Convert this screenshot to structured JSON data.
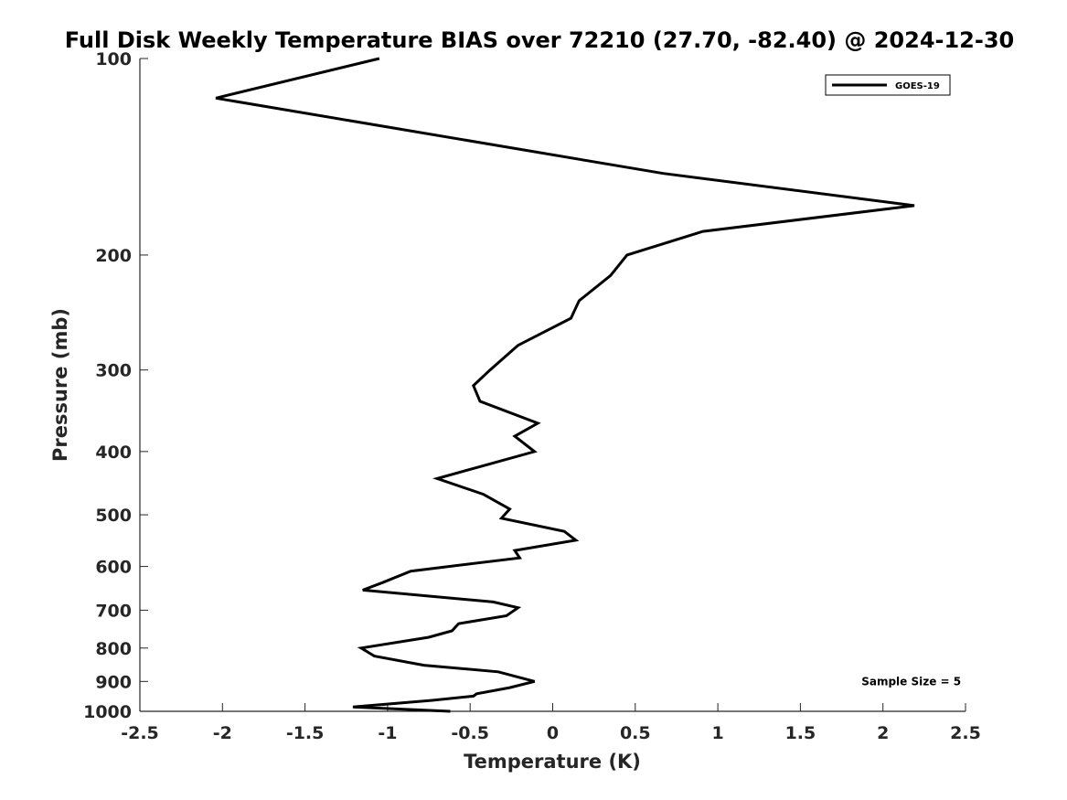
{
  "chart_data": {
    "type": "line",
    "title": "Full Disk Weekly Temperature BIAS over 72210 (27.70, -82.40) @ 2024-12-30",
    "xlabel": "Temperature (K)",
    "ylabel": "Pressure (mb)",
    "xlim": [
      -2.5,
      2.5
    ],
    "ylim": [
      100,
      1000
    ],
    "y_scale": "log",
    "y_reversed": true,
    "x_ticks": [
      "-2.5",
      "-2",
      "-1.5",
      "-1",
      "-0.5",
      "0",
      "0.5",
      "1",
      "1.5",
      "2",
      "2.5"
    ],
    "x_tick_values": [
      -2.5,
      -2,
      -1.5,
      -1,
      -0.5,
      0,
      0.5,
      1,
      1.5,
      2,
      2.5
    ],
    "y_ticks": [
      "100",
      "200",
      "300",
      "400",
      "500",
      "600",
      "700",
      "800",
      "900",
      "1000"
    ],
    "y_tick_values": [
      100,
      200,
      300,
      400,
      500,
      600,
      700,
      800,
      900,
      1000
    ],
    "grid": false,
    "legend_position": "top-right",
    "series": [
      {
        "name": "GOES-19",
        "color": "#000000",
        "points": [
          [
            -1.05,
            100
          ],
          [
            -2.04,
            115
          ],
          [
            0.67,
            150
          ],
          [
            2.19,
            168
          ],
          [
            0.91,
            184
          ],
          [
            0.45,
            200
          ],
          [
            0.35,
            215
          ],
          [
            0.16,
            235
          ],
          [
            0.11,
            250
          ],
          [
            -0.21,
            275
          ],
          [
            -0.38,
            300
          ],
          [
            -0.48,
            317
          ],
          [
            -0.44,
            335
          ],
          [
            -0.09,
            362
          ],
          [
            -0.23,
            379
          ],
          [
            -0.11,
            400
          ],
          [
            -0.7,
            440
          ],
          [
            -0.42,
            465
          ],
          [
            -0.26,
            490
          ],
          [
            -0.31,
            506
          ],
          [
            0.07,
            530
          ],
          [
            0.14,
            547
          ],
          [
            -0.23,
            567
          ],
          [
            -0.2,
            582
          ],
          [
            -0.86,
            610
          ],
          [
            -1.03,
            635
          ],
          [
            -1.15,
            652
          ],
          [
            -0.36,
            680
          ],
          [
            -0.21,
            694
          ],
          [
            -0.28,
            714
          ],
          [
            -0.57,
            734
          ],
          [
            -0.61,
            753
          ],
          [
            -0.75,
            770
          ],
          [
            -1.16,
            800
          ],
          [
            -1.08,
            823
          ],
          [
            -0.78,
            850
          ],
          [
            -0.33,
            870
          ],
          [
            -0.11,
            900
          ],
          [
            -0.26,
            920
          ],
          [
            -0.46,
            940
          ],
          [
            -0.48,
            948
          ],
          [
            -0.73,
            962
          ],
          [
            -1.21,
            985
          ],
          [
            -0.62,
            1000
          ]
        ]
      }
    ],
    "annotations": [
      {
        "text": "Sample Size = 5",
        "x": 1.87,
        "y": 900
      }
    ]
  }
}
